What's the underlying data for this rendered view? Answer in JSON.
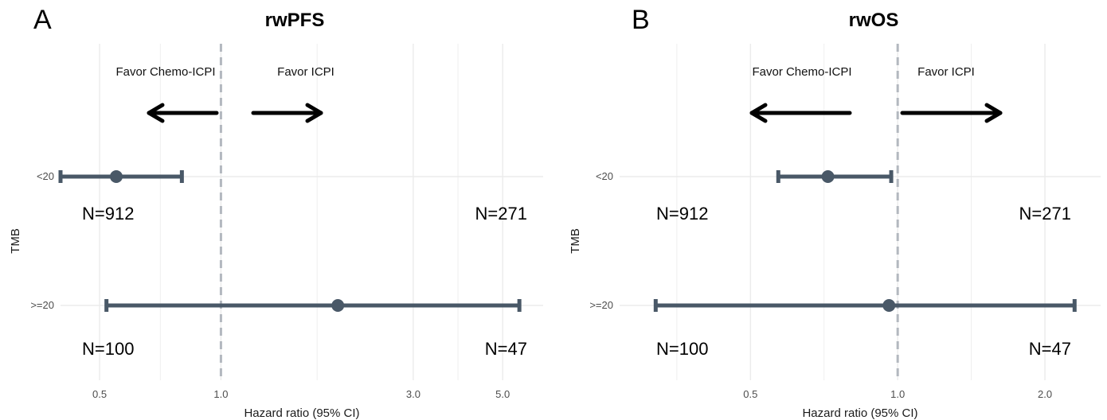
{
  "chart_data": [
    {
      "type": "forest",
      "panel": "A",
      "title": "rwPFS",
      "xlabel": "Hazard ratio (95% CI)",
      "ylabel": "TMB",
      "x_scale": "log",
      "xlim": [
        0.4,
        6.3
      ],
      "x_ticks": [
        0.5,
        1.0,
        3.0,
        5.0
      ],
      "x_tick_labels": [
        "0.5",
        "1.0",
        "3.0",
        "5.0"
      ],
      "reference_line": 1.0,
      "favor_left": "Favor Chemo-ICPI",
      "favor_right": "Favor ICPI",
      "categories": [
        "<20",
        ">=20"
      ],
      "estimates": [
        {
          "category": "<20",
          "hr": 0.55,
          "lower": 0.4,
          "upper": 0.8,
          "n_left": "N=912",
          "n_right": "N=271"
        },
        {
          "category": ">=20",
          "hr": 1.95,
          "lower": 0.52,
          "upper": 5.5,
          "n_left": "N=100",
          "n_right": "N=47"
        }
      ],
      "grid": true
    },
    {
      "type": "forest",
      "panel": "B",
      "title": "rwOS",
      "xlabel": "Hazard ratio (95% CI)",
      "ylabel": "TMB",
      "x_scale": "log",
      "xlim": [
        0.27,
        2.6
      ],
      "x_ticks": [
        0.5,
        1.0,
        2.0
      ],
      "x_tick_labels": [
        "0.5",
        "1.0",
        "2.0"
      ],
      "reference_line": 1.0,
      "favor_left": "Favor Chemo-ICPI",
      "favor_right": "Favor ICPI",
      "categories": [
        "<20",
        ">=20"
      ],
      "estimates": [
        {
          "category": "<20",
          "hr": 0.72,
          "lower": 0.57,
          "upper": 0.97,
          "n_left": "N=912",
          "n_right": "N=271"
        },
        {
          "category": ">=20",
          "hr": 0.96,
          "lower": 0.32,
          "upper": 2.3,
          "n_left": "N=100",
          "n_right": "N=47"
        }
      ],
      "grid": true
    }
  ],
  "colors": {
    "estimate": "#495867",
    "reference_line": "#b3b8bf",
    "grid": "#ebebeb",
    "arrow": "#000000"
  }
}
